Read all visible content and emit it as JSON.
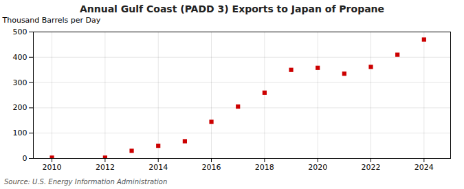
{
  "chart_data": {
    "type": "scatter",
    "title": "Annual Gulf Coast (PADD 3) Exports to Japan of Propane",
    "ylabel": "Thousand Barrels per Day",
    "source": "Source: U.S. Energy Information Administration",
    "x": [
      2010,
      2011,
      2012,
      2013,
      2014,
      2015,
      2016,
      2017,
      2018,
      2019,
      2020,
      2021,
      2022,
      2023,
      2024
    ],
    "values": [
      3,
      null,
      3,
      30,
      50,
      68,
      145,
      205,
      260,
      350,
      358,
      335,
      362,
      410,
      470
    ],
    "color": "#cc0000",
    "marker": "square",
    "xlim": [
      2009.3,
      2025.0
    ],
    "ylim": [
      0,
      500
    ],
    "xticks": [
      2010,
      2012,
      2014,
      2016,
      2018,
      2020,
      2022,
      2024
    ],
    "yticks": [
      0,
      100,
      200,
      300,
      400,
      500
    ],
    "grid": true
  }
}
